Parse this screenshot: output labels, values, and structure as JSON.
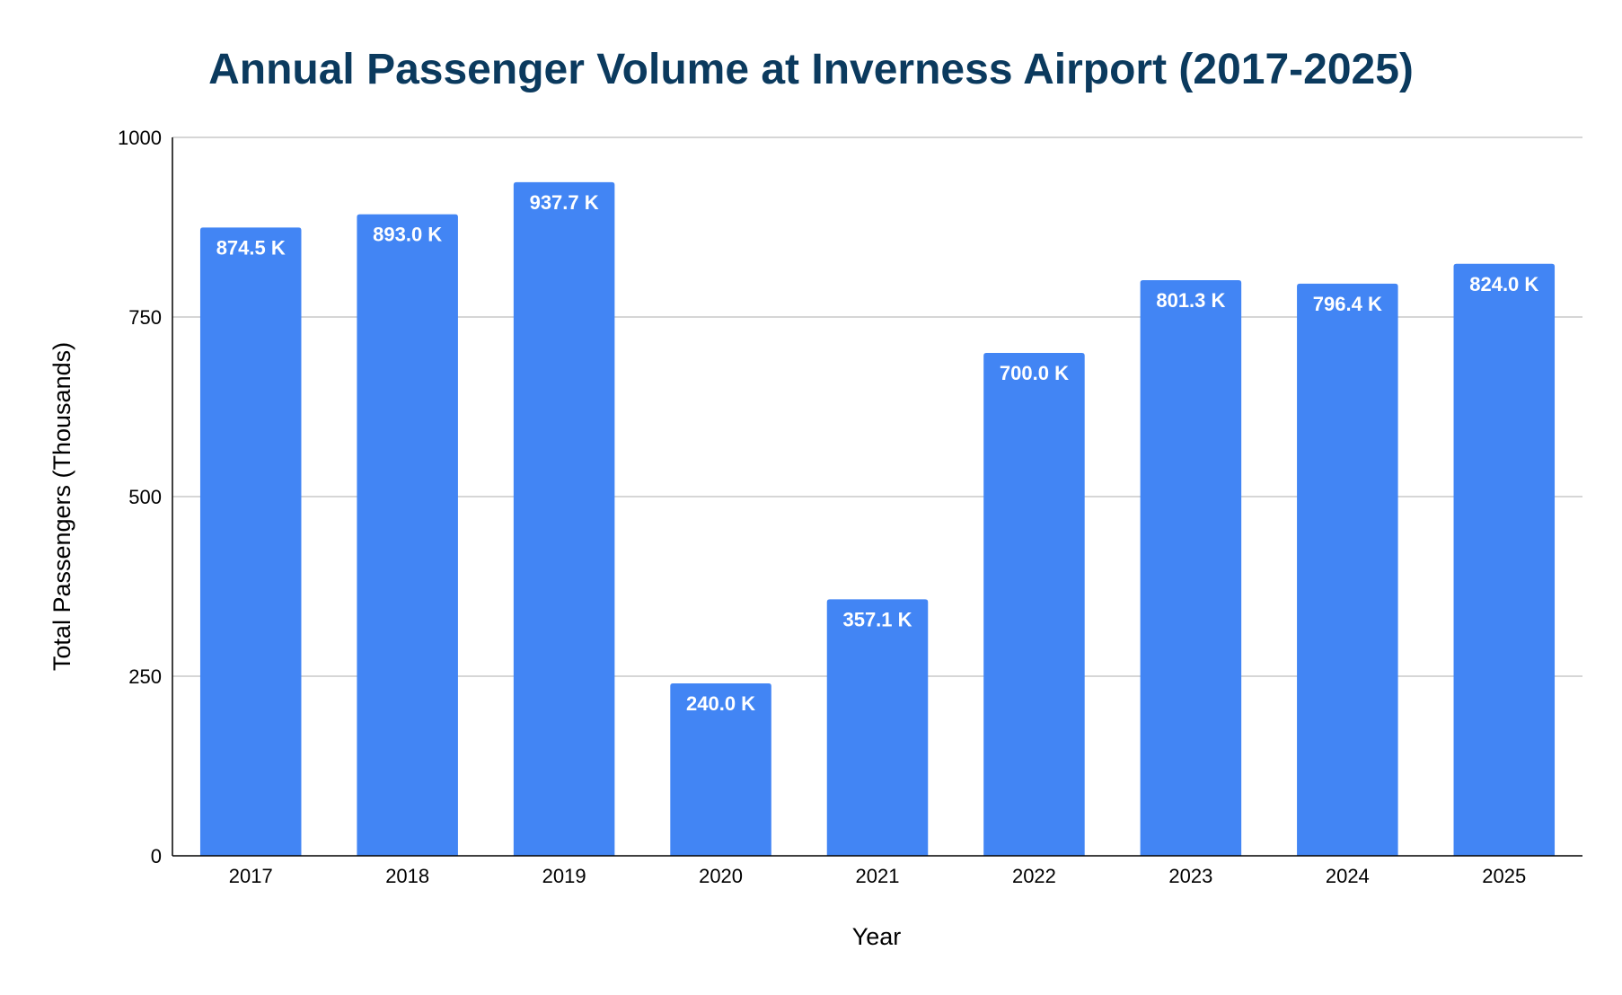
{
  "chart_data": {
    "type": "bar",
    "title": "Annual Passenger Volume at Inverness Airport (2017-2025)",
    "xlabel": "Year",
    "ylabel": "Total Passengers (Thousands)",
    "categories": [
      "2017",
      "2018",
      "2019",
      "2020",
      "2021",
      "2022",
      "2023",
      "2024",
      "2025"
    ],
    "values": [
      874.5,
      893.0,
      937.7,
      240.0,
      357.1,
      700.0,
      801.3,
      796.4,
      824.0
    ],
    "data_labels": [
      "874.5 K",
      "893.0 K",
      "937.7 K",
      "240.0 K",
      "357.1 K",
      "700.0 K",
      "801.3 K",
      "796.4 K",
      "824.0 K"
    ],
    "ylim": [
      0,
      1000
    ],
    "yticks": [
      0,
      250,
      500,
      750,
      1000
    ],
    "ytick_labels": [
      "0",
      "250",
      "500",
      "750",
      "1000"
    ],
    "grid": true,
    "legend": "none",
    "colors": {
      "bar": "#4285f4",
      "title": "#0b3a5e",
      "gridline": "#c8c8c8",
      "axis": "#000000",
      "data_label": "#ffffff"
    }
  }
}
